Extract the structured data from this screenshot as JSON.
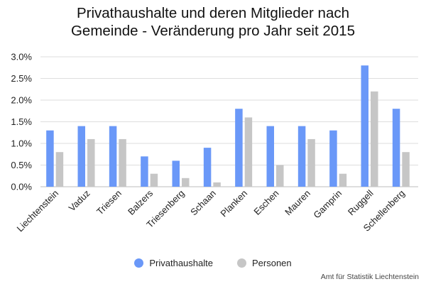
{
  "chart_data": {
    "type": "bar",
    "title_lines": [
      "Privathaushalte und deren Mitglieder nach",
      "Gemeinde - Veränderung pro Jahr seit 2015"
    ],
    "categories": [
      "Liechtenstein",
      "Vaduz",
      "Triesen",
      "Balzers",
      "Triesenberg",
      "Schaan",
      "Planken",
      "Eschen",
      "Mauren",
      "Gamprin",
      "Ruggell",
      "Schellenberg"
    ],
    "series": [
      {
        "name": "Privathaushalte",
        "color": "#6a98f8",
        "values": [
          1.3,
          1.4,
          1.4,
          0.7,
          0.6,
          0.9,
          1.8,
          1.4,
          1.4,
          1.3,
          2.8,
          1.8
        ]
      },
      {
        "name": "Personen",
        "color": "#c6c6c6",
        "values": [
          0.8,
          1.1,
          1.1,
          0.3,
          0.2,
          0.1,
          1.6,
          0.5,
          1.1,
          0.3,
          2.2,
          0.8
        ]
      }
    ],
    "ylim": [
      0,
      3.0
    ],
    "yticks": [
      "0.0%",
      "0.5%",
      "1.0%",
      "1.5%",
      "2.0%",
      "2.5%",
      "3.0%"
    ],
    "ytick_values": [
      0,
      0.5,
      1.0,
      1.5,
      2.0,
      2.5,
      3.0
    ],
    "grid": true,
    "legend_position": "bottom",
    "source": "Amt für Statistik Liechtenstein"
  }
}
